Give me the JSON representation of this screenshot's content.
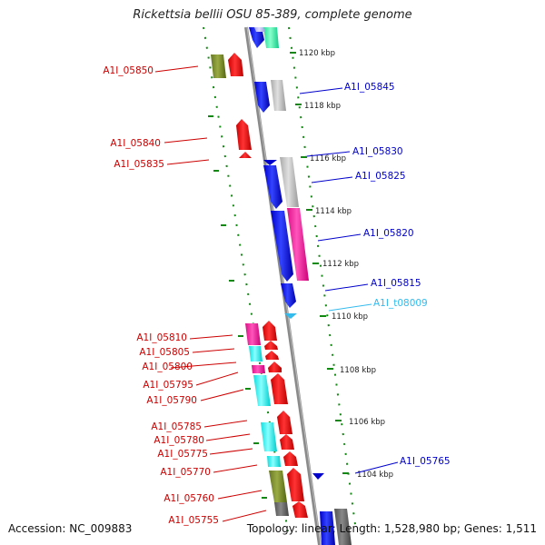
{
  "title": "Rickettsia bellii OSU 85-389, complete genome",
  "accession": "Accession: NC_009883",
  "summary": "Topology: linear; Length: 1,528,980 bp; Genes: 1,511",
  "colors": {
    "forward_label": "#cc0000",
    "reverse_label": "#0000cc",
    "rna_label": "#33bbee",
    "axis": "#888888",
    "dots": "#118811"
  },
  "kbp_ticks": [
    "1120 kbp",
    "1118 kbp",
    "1116 kbp",
    "1114 kbp",
    "1112 kbp",
    "1110 kbp",
    "1108 kbp",
    "1106 kbp",
    "1104 kbp"
  ],
  "left_labels": [
    "A1I_05850",
    "A1I_05840",
    "A1I_05835",
    "A1I_05810",
    "A1I_05805",
    "A1I_05800",
    "A1I_05795",
    "A1I_05790",
    "A1I_05785",
    "A1I_05780",
    "A1I_05775",
    "A1I_05770",
    "A1I_05760",
    "A1I_05755"
  ],
  "right_labels": [
    "A1I_05845",
    "A1I_05830",
    "A1I_05825",
    "A1I_05820",
    "A1I_05815",
    "A1I_t08009",
    "A1I_05765"
  ]
}
